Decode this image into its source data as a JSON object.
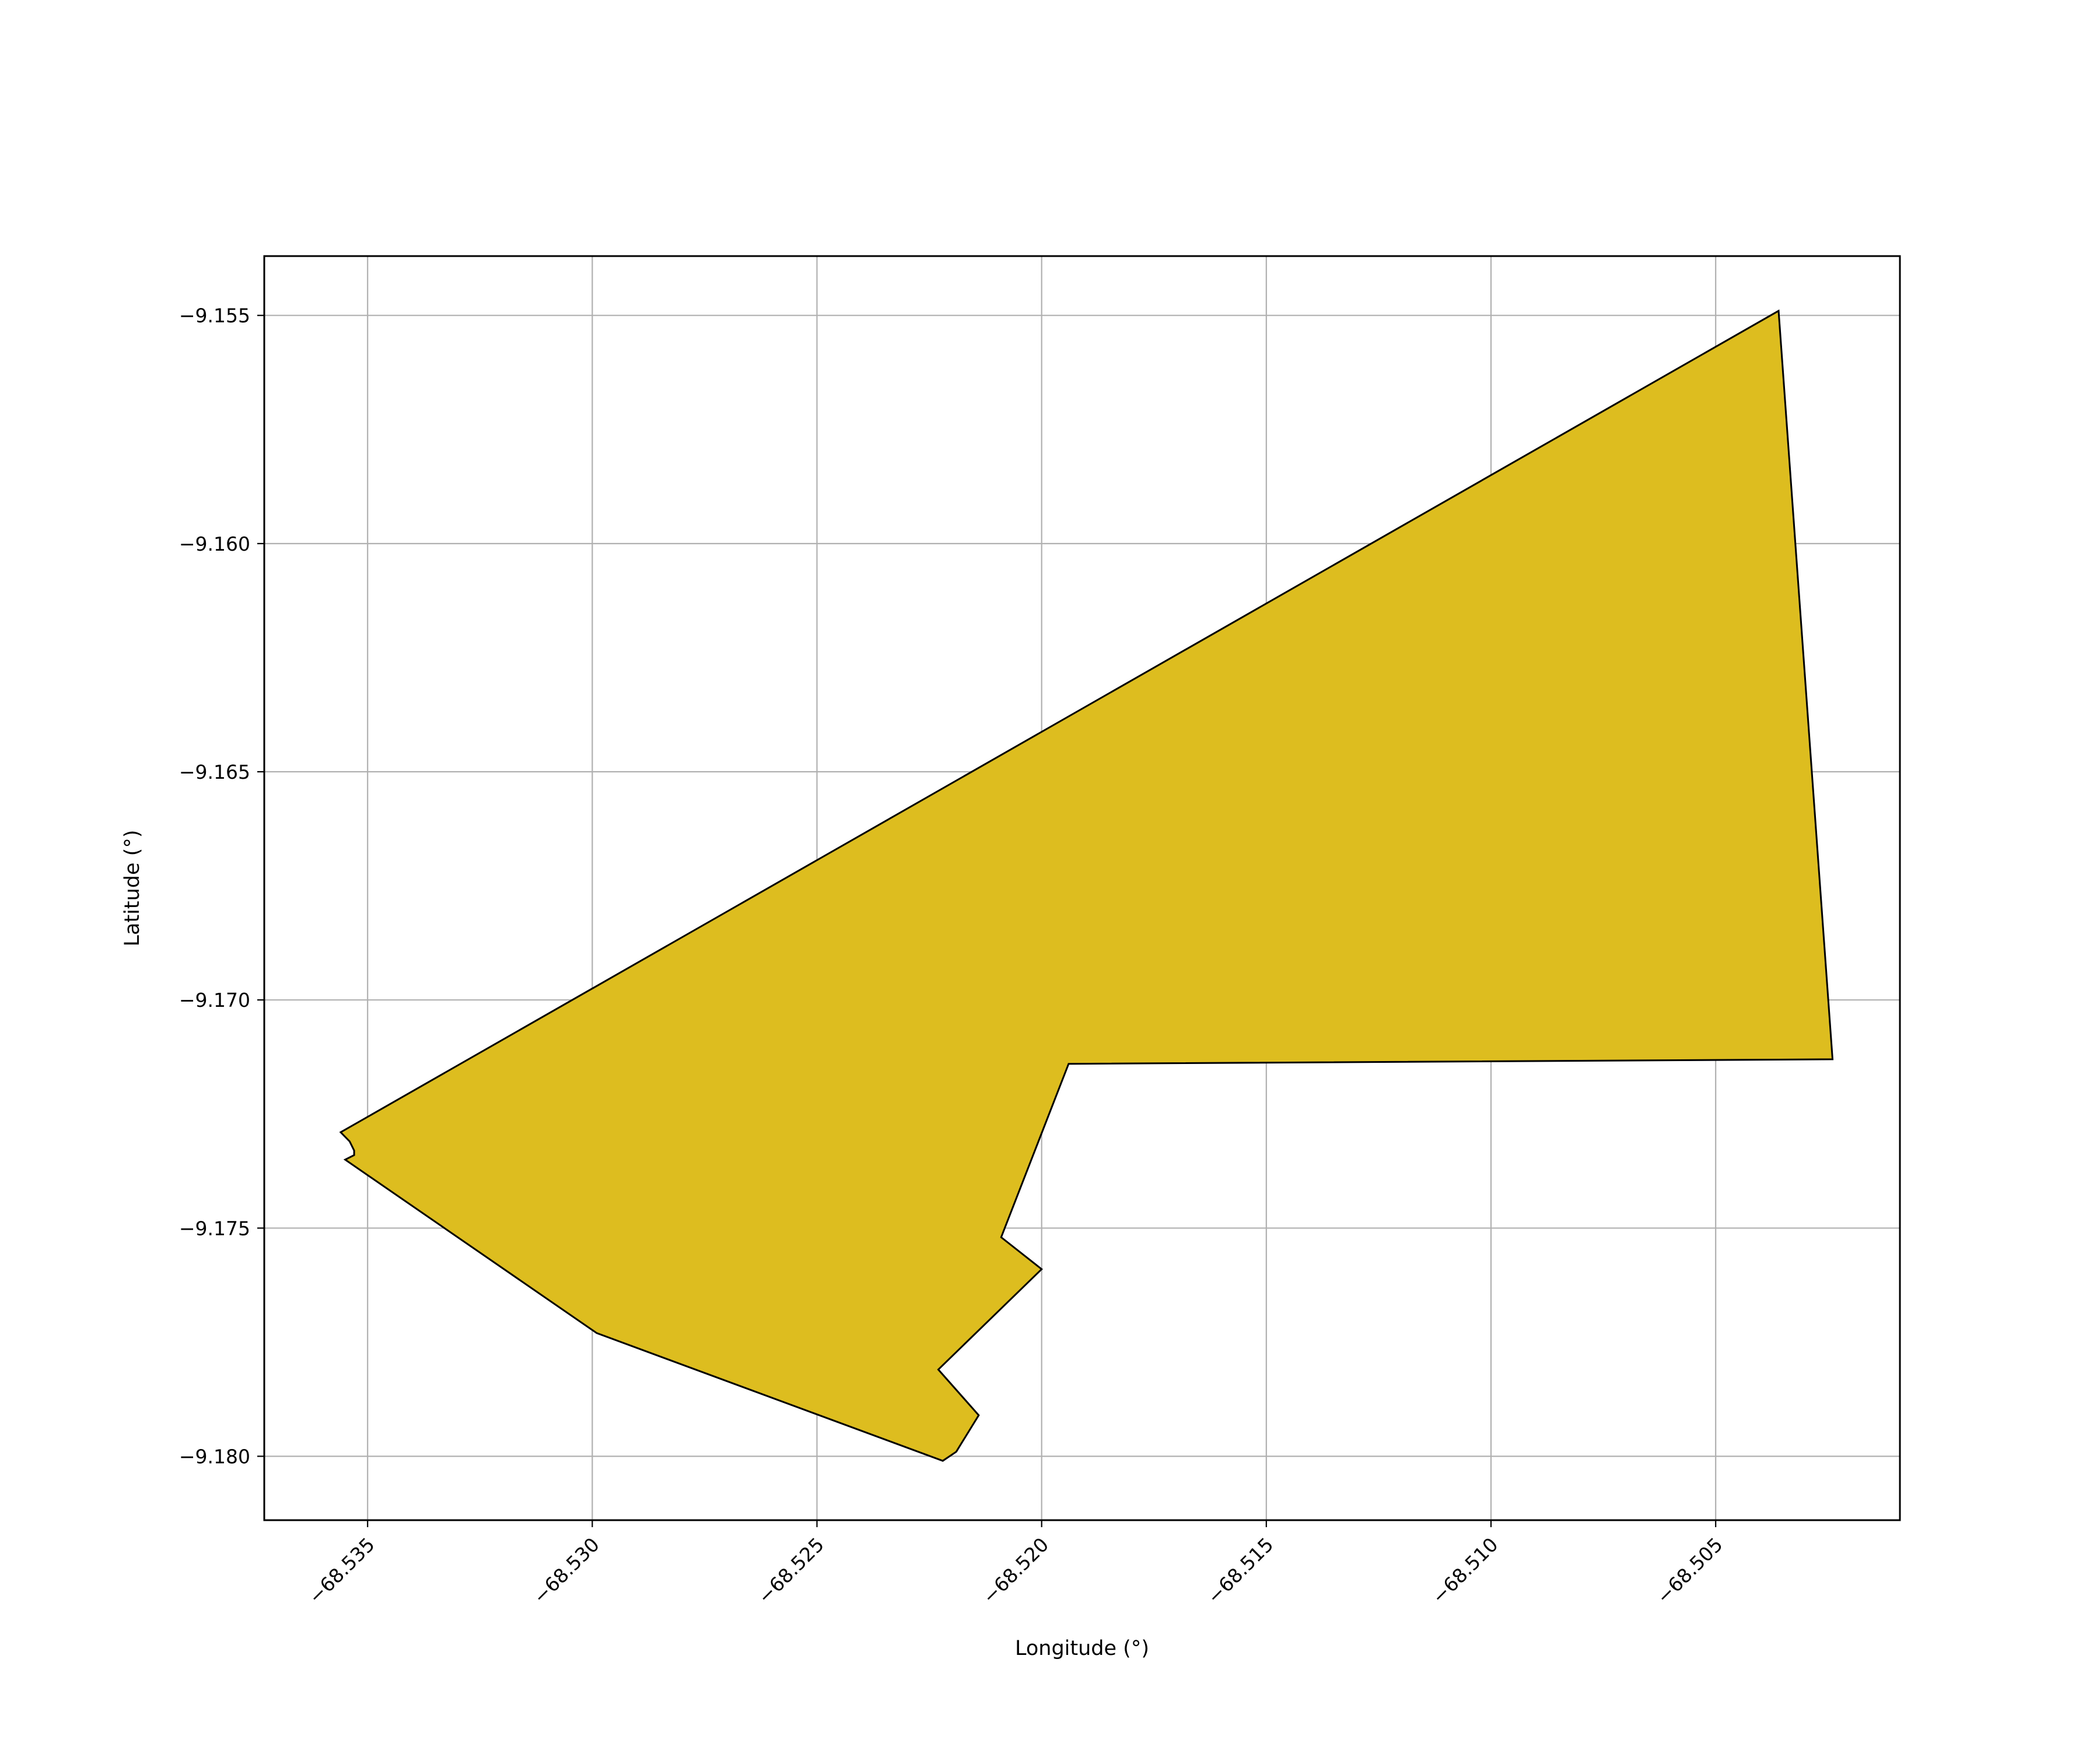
{
  "chart_data": {
    "type": "area",
    "title": "",
    "xlabel": "Longitude (°)",
    "ylabel": "Latitude (°)",
    "xlim": [
      -68.5373,
      -68.5009
    ],
    "ylim": [
      -9.1814,
      -9.1537
    ],
    "xticks": [
      -68.535,
      -68.53,
      -68.525,
      -68.52,
      -68.515,
      -68.51,
      -68.505
    ],
    "yticks": [
      -9.155,
      -9.16,
      -9.165,
      -9.17,
      -9.175,
      -9.18
    ],
    "xtick_labels": [
      "−68.535",
      "−68.530",
      "−68.525",
      "−68.520",
      "−68.515",
      "−68.510",
      "−68.505"
    ],
    "ytick_labels": [
      "−9.155",
      "−9.160",
      "−9.165",
      "−9.170",
      "−9.175",
      "−9.180"
    ],
    "grid": true,
    "fill_color": "#ddbd1f",
    "edge_color": "#000000",
    "polygon": {
      "x": [
        -68.5036,
        -68.5024,
        -68.5194,
        -68.5209,
        -68.52,
        -68.5223,
        -68.5214,
        -68.5219,
        -68.5222,
        -68.5299,
        -68.5355,
        -68.5353,
        -68.5353,
        -68.5354,
        -68.5356,
        -68.5036
      ],
      "y": [
        -9.1549,
        -9.1713,
        -9.1714,
        -9.1752,
        -9.1759,
        -9.1781,
        -9.1791,
        -9.1799,
        -9.1801,
        -9.1773,
        -9.1735,
        -9.1734,
        -9.1733,
        -9.1731,
        -9.1729,
        -9.1549
      ]
    }
  }
}
